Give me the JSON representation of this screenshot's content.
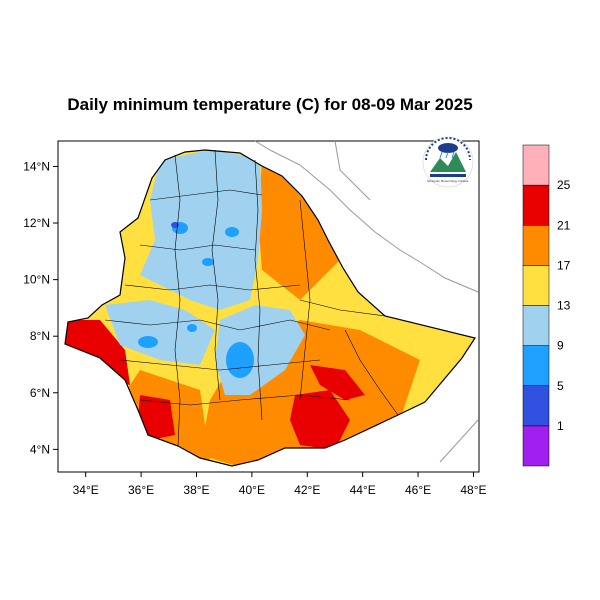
{
  "title": "Daily minimum temperature (C) for 08-09 Mar 2025",
  "map": {
    "lon_range": [
      33,
      48.2
    ],
    "lat_range": [
      3.2,
      14.9
    ],
    "x_ticks": [
      "34°E",
      "36°E",
      "38°E",
      "40°E",
      "42°E",
      "44°E",
      "46°E",
      "48°E"
    ],
    "y_ticks": [
      "4°N",
      "6°N",
      "8°N",
      "10°N",
      "12°N",
      "14°N"
    ],
    "region": "Ethiopia"
  },
  "legend": {
    "colors": [
      "#a020f0",
      "#3050e0",
      "#1ea0ff",
      "#a0d2f0",
      "#ffe040",
      "#ff8c00",
      "#e80000",
      "#ffb0b8"
    ],
    "labels": [
      "1",
      "5",
      "9",
      "13",
      "17",
      "21",
      "25"
    ]
  },
  "logo": {
    "text": "Ethiopian Meteorology Institute"
  }
}
